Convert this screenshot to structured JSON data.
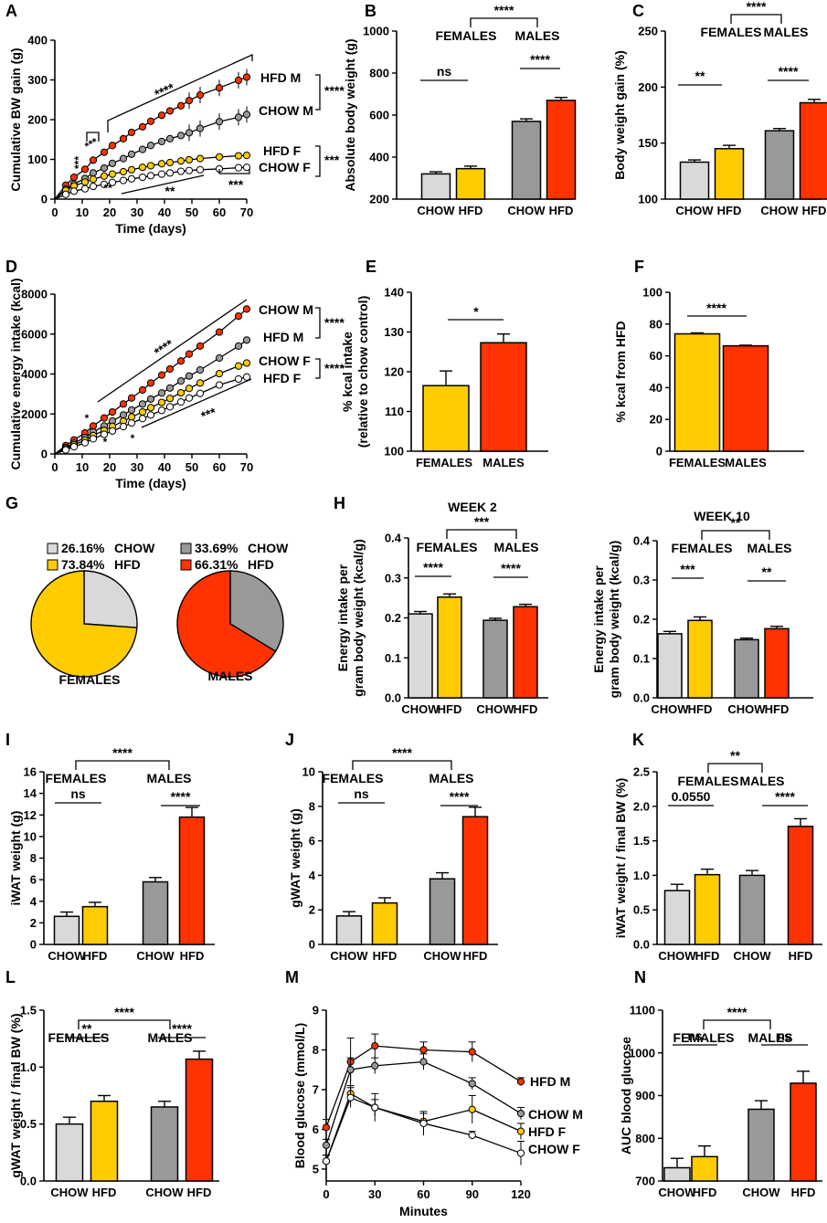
{
  "colors": {
    "chow_f": "#d9d9d9",
    "hfd_f": "#ffcc00",
    "chow_m": "#999999",
    "hfd_m": "#ff3300",
    "open": "#ffffff"
  },
  "chart_data": [
    {
      "panel": "A",
      "type": "line",
      "xlabel": "Time (days)",
      "ylabel": "Cumulative BW gain (g)",
      "xlim": [
        0,
        70
      ],
      "ylim": [
        0,
        400
      ],
      "xticks": [
        0,
        10,
        20,
        30,
        40,
        50,
        60,
        70
      ],
      "yticks": [
        0,
        100,
        200,
        300,
        400
      ],
      "x": [
        4,
        7,
        11,
        14,
        18,
        21,
        25,
        28,
        32,
        35,
        39,
        42,
        46,
        49,
        53,
        60,
        67,
        70
      ],
      "series": [
        {
          "name": "HFD M",
          "color": "hfd_m",
          "values": [
            35,
            55,
            75,
            98,
            118,
            135,
            152,
            168,
            182,
            196,
            211,
            222,
            235,
            248,
            262,
            280,
            299,
            307
          ]
        },
        {
          "name": "CHOW M",
          "color": "chow_m",
          "values": [
            25,
            38,
            52,
            66,
            78,
            90,
            102,
            113,
            125,
            135,
            145,
            152,
            160,
            167,
            178,
            195,
            206,
            213
          ]
        },
        {
          "name": "HFD F",
          "color": "hfd_f",
          "values": [
            22,
            33,
            43,
            50,
            58,
            63,
            69,
            74,
            80,
            84,
            89,
            92,
            96,
            99,
            102,
            106,
            109,
            110
          ]
        },
        {
          "name": "CHOW F",
          "color": "open",
          "values": [
            12,
            20,
            26,
            32,
            37,
            42,
            47,
            51,
            55,
            59,
            63,
            66,
            70,
            72,
            74,
            76,
            79,
            80
          ]
        }
      ],
      "labels": [
        "HFD M",
        "CHOW M",
        "HFD F",
        "CHOW F"
      ],
      "annotations": [
        "****",
        "****",
        "***",
        "***",
        "***",
        "**",
        "**",
        "***"
      ]
    },
    {
      "panel": "B",
      "type": "bar",
      "ylabel": "Absolute body weight (g)",
      "ylim": [
        200,
        1000
      ],
      "yticks": [
        200,
        400,
        600,
        800,
        1000
      ],
      "categories": [
        "CHOW",
        "HFD",
        "CHOW",
        "HFD"
      ],
      "values": [
        320,
        345,
        570,
        670
      ],
      "errors": [
        10,
        12,
        12,
        14
      ],
      "groups": [
        "FEMALES",
        "MALES"
      ],
      "annotations": [
        "****",
        "ns",
        "****"
      ]
    },
    {
      "panel": "C",
      "type": "bar",
      "ylabel": "Body weight gain (%)",
      "ylim": [
        100,
        250
      ],
      "yticks": [
        100,
        150,
        200,
        250
      ],
      "categories": [
        "CHOW",
        "HFD",
        "CHOW",
        "HFD"
      ],
      "values": [
        133,
        145,
        161,
        186
      ],
      "errors": [
        2,
        3,
        2,
        3
      ],
      "groups": [
        "FEMALES",
        "MALES"
      ],
      "annotations": [
        "****",
        "**",
        "****"
      ]
    },
    {
      "panel": "D",
      "type": "line",
      "xlabel": "Time (days)",
      "ylabel": "Cumulative energy intake (kcal)",
      "xlim": [
        0,
        70
      ],
      "ylim": [
        0,
        8000
      ],
      "xticks": [
        0,
        10,
        20,
        30,
        40,
        50,
        60,
        70
      ],
      "yticks": [
        0,
        2000,
        4000,
        6000,
        8000
      ],
      "x": [
        4,
        7,
        11,
        14,
        18,
        21,
        25,
        28,
        32,
        35,
        39,
        42,
        46,
        49,
        53,
        60,
        67,
        70
      ],
      "series": [
        {
          "name": "CHOW M",
          "color": "hfd_m",
          "values": [
            420,
            700,
            1050,
            1400,
            1800,
            2100,
            2500,
            2800,
            3200,
            3550,
            3950,
            4250,
            4650,
            5000,
            5400,
            6100,
            6900,
            7250
          ]
        },
        {
          "name": "HFD M",
          "color": "chow_m",
          "values": [
            320,
            540,
            820,
            1100,
            1400,
            1650,
            1950,
            2200,
            2500,
            2750,
            3050,
            3300,
            3650,
            3900,
            4200,
            4800,
            5400,
            5700
          ]
        },
        {
          "name": "CHOW F",
          "color": "hfd_f",
          "values": [
            260,
            450,
            690,
            920,
            1180,
            1380,
            1640,
            1850,
            2100,
            2320,
            2580,
            2780,
            3060,
            3280,
            3550,
            4020,
            4400,
            4550
          ]
        },
        {
          "name": "HFD F",
          "color": "open",
          "values": [
            200,
            360,
            560,
            760,
            980,
            1150,
            1370,
            1550,
            1770,
            1950,
            2180,
            2360,
            2600,
            2800,
            3030,
            3450,
            3750,
            3850
          ]
        }
      ],
      "labels": [
        "CHOW M",
        "HFD M",
        "CHOW F",
        "HFD F"
      ],
      "annotations": [
        "****",
        "****",
        "****",
        "***",
        "*",
        "*",
        "*"
      ]
    },
    {
      "panel": "E",
      "type": "bar",
      "ylabel": "% kcal intake",
      "ylabel2": "(relative to chow control)",
      "ylim": [
        100,
        140
      ],
      "yticks": [
        100,
        110,
        120,
        130,
        140
      ],
      "categories": [
        "FEMALES",
        "MALES"
      ],
      "values": [
        116.5,
        127.3
      ],
      "errors": [
        3.7,
        2.2
      ],
      "annotations": [
        "*"
      ]
    },
    {
      "panel": "F",
      "type": "bar",
      "ylabel": "% kcal from HFD",
      "ylim": [
        0,
        100
      ],
      "yticks": [
        0,
        20,
        40,
        60,
        80,
        100
      ],
      "categories": [
        "FEMALES",
        "MALES"
      ],
      "values": [
        73.84,
        66.31
      ],
      "errors": [
        0.6,
        0.4
      ],
      "annotations": [
        "****"
      ]
    },
    {
      "panel": "G",
      "type": "pie",
      "pies": [
        {
          "title": "FEMALES",
          "slices": [
            {
              "label": "CHOW",
              "pct_text": "26.16%",
              "value": 26.16,
              "color": "chow_f"
            },
            {
              "label": "HFD",
              "pct_text": "73.84%",
              "value": 73.84,
              "color": "hfd_f"
            }
          ]
        },
        {
          "title": "MALES",
          "slices": [
            {
              "label": "CHOW",
              "pct_text": "33.69%",
              "value": 33.69,
              "color": "chow_m"
            },
            {
              "label": "HFD",
              "pct_text": "66.31%",
              "value": 66.31,
              "color": "hfd_m"
            }
          ]
        }
      ]
    },
    {
      "panel": "H",
      "type": "bar",
      "title": "WEEK 2",
      "ylabel": "Energy intake per",
      "ylabel2": "gram body weight (kcal/g)",
      "ylim": [
        0,
        0.4
      ],
      "yticks": [
        "0.0",
        "0.1",
        "0.2",
        "0.3",
        "0.4"
      ],
      "categories": [
        "CHOW",
        "HFD",
        "CHOW",
        "HFD"
      ],
      "values": [
        0.21,
        0.252,
        0.194,
        0.228
      ],
      "errors": [
        0.006,
        0.008,
        0.005,
        0.006
      ],
      "groups": [
        "FEMALES",
        "MALES"
      ],
      "annotations": [
        "***",
        "****",
        "****"
      ]
    },
    {
      "panel": "H2",
      "type": "bar",
      "title": "WEEK 10",
      "ylabel": "Energy intake per",
      "ylabel2": "gram body weight (kcal/g)",
      "ylim": [
        0,
        0.4
      ],
      "yticks": [
        "0.0",
        "0.1",
        "0.2",
        "0.3",
        "0.4"
      ],
      "categories": [
        "CHOW",
        "HFD",
        "CHOW",
        "HFD"
      ],
      "values": [
        0.163,
        0.197,
        0.148,
        0.176
      ],
      "errors": [
        0.006,
        0.009,
        0.004,
        0.006
      ],
      "groups": [
        "FEMALES",
        "MALES"
      ],
      "annotations": [
        "**",
        "***",
        "**"
      ]
    },
    {
      "panel": "I",
      "type": "bar",
      "ylabel": "iWAT weight (g)",
      "ylim": [
        0,
        16
      ],
      "yticks": [
        0,
        2,
        4,
        6,
        8,
        10,
        12,
        14,
        16
      ],
      "categories": [
        "CHOW",
        "HFD",
        "CHOW",
        "HFD"
      ],
      "values": [
        2.6,
        3.5,
        5.8,
        11.8
      ],
      "errors": [
        0.4,
        0.4,
        0.4,
        0.9
      ],
      "groups": [
        "FEMALES",
        "MALES"
      ],
      "annotations": [
        "****",
        "ns",
        "****"
      ]
    },
    {
      "panel": "J",
      "type": "bar",
      "ylabel": "gWAT weight (g)",
      "ylim": [
        0,
        10
      ],
      "yticks": [
        0,
        2,
        4,
        6,
        8,
        10
      ],
      "categories": [
        "CHOW",
        "HFD",
        "CHOW",
        "HFD"
      ],
      "values": [
        1.65,
        2.4,
        3.8,
        7.4
      ],
      "errors": [
        0.25,
        0.3,
        0.35,
        0.55
      ],
      "groups": [
        "FEMALES",
        "MALES"
      ],
      "annotations": [
        "****",
        "ns",
        "****"
      ]
    },
    {
      "panel": "K",
      "type": "bar",
      "ylabel": "iWAT weight / final BW (%)",
      "ylim": [
        0,
        2.5
      ],
      "yticks": [
        "0.0",
        "0.5",
        "1.0",
        "1.5",
        "2.0",
        "2.5"
      ],
      "categories": [
        "CHOW",
        "HFD",
        "CHOW",
        "HFD"
      ],
      "values": [
        0.78,
        1.01,
        1.0,
        1.71
      ],
      "errors": [
        0.09,
        0.08,
        0.07,
        0.11
      ],
      "groups": [
        "FEMALES",
        "MALES"
      ],
      "annotations": [
        "**",
        "0.0550",
        "****"
      ]
    },
    {
      "panel": "L",
      "type": "bar",
      "ylabel": "gWAT weight / final BW (%)",
      "ylim": [
        0,
        1.5
      ],
      "yticks": [
        "0.0",
        "0.5",
        "1.0",
        "1.5"
      ],
      "categories": [
        "CHOW",
        "HFD",
        "CHOW",
        "HFD"
      ],
      "values": [
        0.5,
        0.7,
        0.65,
        1.07
      ],
      "errors": [
        0.06,
        0.05,
        0.05,
        0.07
      ],
      "groups": [
        "FEMALES",
        "MALES"
      ],
      "annotations": [
        "****",
        "**",
        "****"
      ]
    },
    {
      "panel": "M",
      "type": "line",
      "xlabel": "Minutes",
      "ylabel": "Blood glucose (mmol/L)",
      "xlim": [
        0,
        120
      ],
      "ylim": [
        4.7,
        9
      ],
      "xticks": [
        0,
        30,
        60,
        90,
        120
      ],
      "yticks": [
        5,
        6,
        7,
        8,
        9
      ],
      "x": [
        0,
        15,
        30,
        60,
        90,
        120
      ],
      "series": [
        {
          "name": "HFD M",
          "color": "hfd_m",
          "values": [
            6.05,
            7.7,
            8.1,
            8.0,
            7.95,
            7.2
          ],
          "errors": [
            0.2,
            0.6,
            0.3,
            0.2,
            0.25,
            0.1
          ]
        },
        {
          "name": "CHOW M",
          "color": "chow_m",
          "values": [
            5.6,
            7.5,
            7.6,
            7.7,
            7.15,
            6.4
          ],
          "errors": [
            0.15,
            0.3,
            0.2,
            0.2,
            0.15,
            0.15
          ]
        },
        {
          "name": "HFD F",
          "color": "hfd_f",
          "values": [
            5.2,
            6.9,
            6.55,
            6.2,
            6.5,
            5.95
          ],
          "errors": [
            0.15,
            0.2,
            0.35,
            0.2,
            0.35,
            0.2
          ]
        },
        {
          "name": "CHOW F",
          "color": "open",
          "values": [
            5.2,
            6.8,
            6.55,
            6.15,
            5.85,
            5.4
          ],
          "errors": [
            0.15,
            0.25,
            0.2,
            0.3,
            0.1,
            0.3
          ]
        }
      ],
      "labels": [
        "HFD M",
        "CHOW M",
        "HFD F",
        "CHOW F"
      ]
    },
    {
      "panel": "N",
      "type": "bar",
      "ylabel": "AUC blood glucose",
      "ylim": [
        700,
        1100
      ],
      "yticks": [
        700,
        800,
        900,
        1000,
        1100
      ],
      "categories": [
        "CHOW",
        "HFD",
        "CHOW",
        "HFD"
      ],
      "values": [
        731,
        757,
        868,
        929
      ],
      "errors": [
        22,
        25,
        20,
        28
      ],
      "groups": [
        "FEMALES",
        "MALES"
      ],
      "annotations": [
        "****",
        "ns",
        "ns"
      ]
    }
  ]
}
